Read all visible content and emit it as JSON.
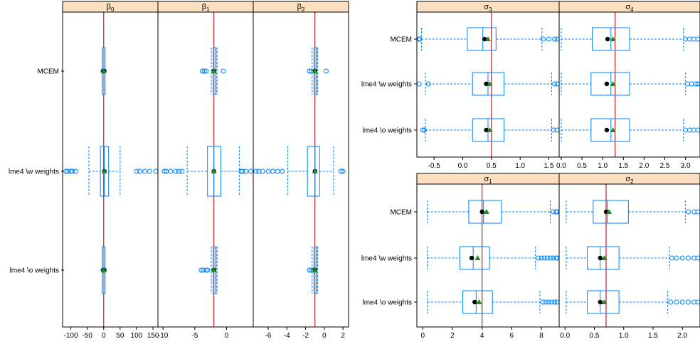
{
  "colors": {
    "strip": "#fde0c0",
    "box": "#0080ff",
    "ref_line": "#b22222",
    "mean": "#000000",
    "truth": "#228b22"
  },
  "method_labels": [
    "MCEM",
    "lme4 \\w weights",
    "lme4 \\o weights"
  ],
  "chart_data": [
    {
      "type": "boxplot",
      "strip": "β0",
      "xlim": [
        -125,
        165
      ],
      "ticks": [
        "-100",
        "-50",
        "0",
        "50",
        "100",
        "150"
      ],
      "tick_values": [
        -100,
        -50,
        0,
        50,
        100,
        150
      ],
      "reference": 0,
      "rows": [
        {
          "method": "MCEM",
          "min": 0,
          "q1": 0,
          "median": 0,
          "q3": 0,
          "max": 0,
          "whisker_lo": 0,
          "whisker_hi": 0,
          "mean": 0,
          "truth": 0,
          "outliers": [
            -2,
            -1,
            1,
            2
          ]
        },
        {
          "method": "lme4 \\w weights",
          "min": -115,
          "q1": -10,
          "median": 2,
          "q3": 15,
          "max": 160,
          "whisker_lo": -45,
          "whisker_hi": 50,
          "mean": 2,
          "truth": 2,
          "outliers": [
            -115,
            -110,
            -100,
            -95,
            -85,
            100,
            110,
            125,
            140,
            160
          ]
        },
        {
          "method": "lme4 \\o weights",
          "min": 0,
          "q1": 0,
          "median": 0,
          "q3": 0,
          "max": 0,
          "whisker_lo": 0,
          "whisker_hi": 0,
          "mean": 0,
          "truth": 0,
          "outliers": [
            -2,
            -1,
            1,
            2
          ]
        }
      ]
    },
    {
      "type": "boxplot",
      "strip": "β1",
      "xlim": [
        -10.8,
        4.2
      ],
      "ticks": [
        "-10",
        "-5",
        "0"
      ],
      "tick_values": [
        -10,
        -5,
        0
      ],
      "reference": -2,
      "rows": [
        {
          "method": "MCEM",
          "q1": -2.1,
          "median": -2,
          "q3": -1.8,
          "whisker_lo": -2.4,
          "whisker_hi": -1.5,
          "mean": -2,
          "truth": -2,
          "outliers": [
            -3.8,
            -3.5,
            -3.2,
            -0.5
          ]
        },
        {
          "method": "lme4 \\w weights",
          "q1": -3,
          "median": -2,
          "q3": -0.9,
          "whisker_lo": -6.2,
          "whisker_hi": 2,
          "mean": -2,
          "truth": -2,
          "outliers": [
            -9.8,
            -9.5,
            -8.8,
            -8,
            -7.5,
            -7,
            2.3,
            2.5,
            3,
            3.8
          ]
        },
        {
          "method": "lme4 \\o weights",
          "q1": -2.1,
          "median": -2,
          "q3": -1.8,
          "whisker_lo": -2.4,
          "whisker_hi": -1.5,
          "mean": -2,
          "truth": -2,
          "outliers": [
            -4,
            -3.7,
            -3.2,
            -3
          ]
        }
      ]
    },
    {
      "type": "boxplot",
      "strip": "β2",
      "xlim": [
        -7.6,
        2.6
      ],
      "ticks": [
        "-6",
        "-4",
        "-2",
        "0",
        "2"
      ],
      "tick_values": [
        -6,
        -4,
        -2,
        0,
        2
      ],
      "reference": -1,
      "rows": [
        {
          "method": "MCEM",
          "q1": -1.1,
          "median": -1,
          "q3": -0.9,
          "whisker_lo": -1.3,
          "whisker_hi": -0.7,
          "mean": -1,
          "truth": -1,
          "outliers": [
            -1.6,
            -1.4,
            0.2
          ]
        },
        {
          "method": "lme4 \\w weights",
          "q1": -1.8,
          "median": -1,
          "q3": -0.5,
          "whisker_lo": -3.9,
          "whisker_hi": 1,
          "mean": -1,
          "truth": -1,
          "outliers": [
            -7.3,
            -7,
            -6.6,
            -6,
            -5.5,
            -5,
            -4.5,
            1.8,
            2
          ]
        },
        {
          "method": "lme4 \\o weights",
          "q1": -1.1,
          "median": -1,
          "q3": -0.9,
          "whisker_lo": -1.3,
          "whisker_hi": -0.7,
          "mean": -1,
          "truth": -1,
          "outliers": [
            -1.6,
            -1.4,
            -1.2
          ]
        }
      ]
    },
    {
      "type": "boxplot",
      "strip": "σ3",
      "xlim": [
        -0.8,
        1.68
      ],
      "ticks": [
        "-0.5",
        "0.0",
        "0.5",
        "1.0",
        "1.5"
      ],
      "tick_values": [
        -0.5,
        0,
        0.5,
        1,
        1.5
      ],
      "reference": 0.5,
      "rows": [
        {
          "method": "MCEM",
          "q1": 0.08,
          "median": 0.35,
          "q3": 0.58,
          "whisker_lo": -0.72,
          "whisker_hi": 1.38,
          "mean": 0.38,
          "truth": 0.44,
          "outliers": [
            -0.8,
            -0.78,
            -0.75,
            1.4,
            1.5,
            1.6,
            1.68
          ]
        },
        {
          "method": "lme4 \\w weights",
          "q1": 0.17,
          "median": 0.44,
          "q3": 0.72,
          "whisker_lo": -0.65,
          "whisker_hi": 1.55,
          "mean": 0.41,
          "truth": 0.47,
          "outliers": [
            -0.76,
            -0.6,
            1.6,
            1.68
          ]
        },
        {
          "method": "lme4 \\o weights",
          "q1": 0.17,
          "median": 0.44,
          "q3": 0.72,
          "whisker_lo": -0.65,
          "whisker_hi": 1.55,
          "mean": 0.41,
          "truth": 0.47,
          "outliers": [
            -0.7,
            -0.67,
            1.58,
            1.68
          ]
        }
      ]
    },
    {
      "type": "boxplot",
      "strip": "σ4",
      "xlim": [
        -0.05,
        3.35
      ],
      "ticks": [
        "0.0",
        "0.5",
        "1.0",
        "1.5",
        "2.0",
        "2.5",
        "3.0"
      ],
      "tick_values": [
        0,
        0.5,
        1,
        1.5,
        2,
        2.5,
        3
      ],
      "reference": 1.3,
      "rows": [
        {
          "method": "MCEM",
          "q1": 0.75,
          "median": 1.2,
          "q3": 1.65,
          "whisker_lo": 0,
          "whisker_hi": 2.95,
          "mean": 1.12,
          "truth": 1.25,
          "outliers": [
            3.0,
            3.1,
            3.2,
            3.35
          ]
        },
        {
          "method": "lme4 \\w weights",
          "q1": 0.72,
          "median": 1.2,
          "q3": 1.65,
          "whisker_lo": 0,
          "whisker_hi": 3.0,
          "mean": 1.1,
          "truth": 1.25,
          "outliers": [
            3.05,
            3.15,
            3.25,
            3.35
          ]
        },
        {
          "method": "lme4 \\o weights",
          "q1": 0.72,
          "median": 1.2,
          "q3": 1.65,
          "whisker_lo": 0,
          "whisker_hi": 2.95,
          "mean": 1.1,
          "truth": 1.25,
          "outliers": [
            3.0,
            3.1,
            3.2,
            3.35
          ]
        }
      ]
    },
    {
      "type": "boxplot",
      "strip": "σ1",
      "xlim": [
        -0.4,
        9.2
      ],
      "ticks": [
        "0",
        "2",
        "4",
        "6",
        "8"
      ],
      "tick_values": [
        0,
        2,
        4,
        6,
        8
      ],
      "reference": 4,
      "rows": [
        {
          "method": "MCEM",
          "q1": 3.1,
          "median": 4.1,
          "q3": 5.3,
          "whisker_lo": 0.3,
          "whisker_hi": 8.6,
          "mean": 4.0,
          "truth": 4.3,
          "outliers": [
            8.8,
            9.0,
            9.2
          ]
        },
        {
          "method": "lme4 \\w weights",
          "q1": 2.5,
          "median": 3.4,
          "q3": 4.5,
          "whisker_lo": 0.3,
          "whisker_hi": 7.6,
          "mean": 3.3,
          "truth": 3.7,
          "outliers": [
            7.8,
            8.0,
            8.2,
            8.4,
            8.6,
            8.8,
            9.0,
            9.2
          ]
        },
        {
          "method": "lme4 \\o weights",
          "q1": 2.7,
          "median": 3.6,
          "q3": 4.7,
          "whisker_lo": 0.3,
          "whisker_hi": 7.9,
          "mean": 3.5,
          "truth": 3.8,
          "outliers": [
            8.1,
            8.3,
            8.5,
            8.7,
            8.9,
            9.1
          ]
        }
      ]
    },
    {
      "type": "boxplot",
      "strip": "σ2",
      "xlim": [
        -0.1,
        2.3
      ],
      "ticks": [
        "0.0",
        "0.5",
        "1.0",
        "1.5",
        "2.0"
      ],
      "tick_values": [
        0,
        0.5,
        1,
        1.5,
        2
      ],
      "reference": 0.7,
      "rows": [
        {
          "method": "MCEM",
          "q1": 0.48,
          "median": 0.72,
          "q3": 1.08,
          "whisker_lo": 0.02,
          "whisker_hi": 2.05,
          "mean": 0.7,
          "truth": 0.75,
          "outliers": [
            2.1,
            2.2,
            2.3
          ]
        },
        {
          "method": "lme4 \\w weights",
          "q1": 0.38,
          "median": 0.6,
          "q3": 0.92,
          "whisker_lo": 0.02,
          "whisker_hi": 1.78,
          "mean": 0.6,
          "truth": 0.67,
          "outliers": [
            1.82,
            1.9,
            2.0,
            2.1,
            2.2,
            2.3
          ]
        },
        {
          "method": "lme4 \\o weights",
          "q1": 0.38,
          "median": 0.6,
          "q3": 0.92,
          "whisker_lo": 0.02,
          "whisker_hi": 1.75,
          "mean": 0.6,
          "truth": 0.67,
          "outliers": [
            1.8,
            1.9,
            2.0,
            2.1,
            2.2,
            2.3
          ]
        }
      ]
    }
  ]
}
